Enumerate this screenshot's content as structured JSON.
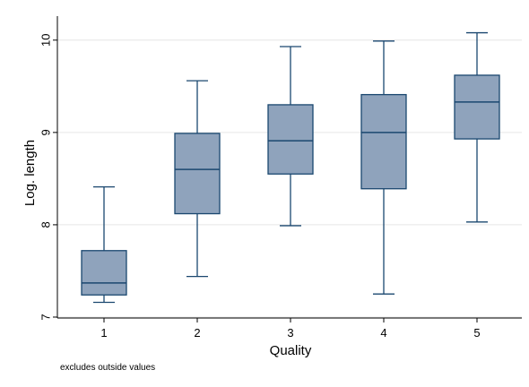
{
  "chart_data": {
    "type": "box",
    "xlabel": "Quality",
    "ylabel": "Log. length",
    "categories": [
      "1",
      "2",
      "3",
      "4",
      "5"
    ],
    "yticks": [
      "7",
      "8",
      "9",
      "10"
    ],
    "ylim": [
      6.99,
      10.26
    ],
    "grid": true,
    "note": "excludes outside values",
    "colors": {
      "box_fill": "#8fa3bc",
      "box_stroke": "#1a476f",
      "grid": "#e6e6e6",
      "axis": "#000000"
    },
    "boxes": [
      {
        "category": "1",
        "whisker_low": 7.16,
        "q1": 7.24,
        "median": 7.37,
        "q3": 7.72,
        "whisker_high": 8.41
      },
      {
        "category": "2",
        "whisker_low": 7.44,
        "q1": 8.12,
        "median": 8.6,
        "q3": 8.99,
        "whisker_high": 9.56
      },
      {
        "category": "3",
        "whisker_low": 7.99,
        "q1": 8.55,
        "median": 8.91,
        "q3": 9.3,
        "whisker_high": 9.93
      },
      {
        "category": "4",
        "whisker_low": 7.25,
        "q1": 8.39,
        "median": 9.0,
        "q3": 9.41,
        "whisker_high": 9.99
      },
      {
        "category": "5",
        "whisker_low": 8.03,
        "q1": 8.93,
        "median": 9.33,
        "q3": 9.62,
        "whisker_high": 10.08
      }
    ]
  }
}
